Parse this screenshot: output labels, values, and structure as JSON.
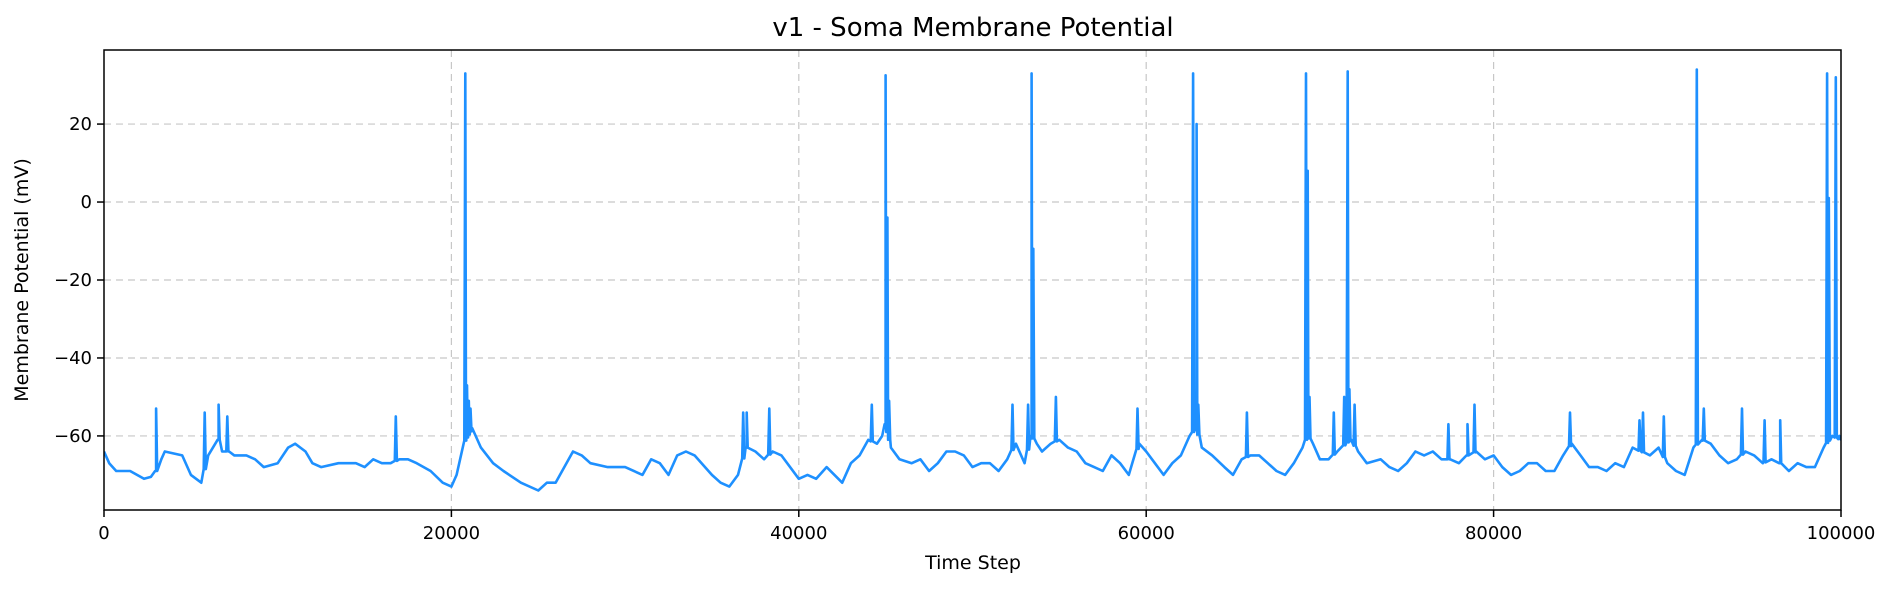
{
  "chart_data": {
    "type": "line",
    "title": "v1 - Soma Membrane Potential",
    "xlabel": "Time Step",
    "ylabel": "Membrane Potential (mV)",
    "xlim": [
      0,
      100000
    ],
    "ylim": [
      -79,
      39
    ],
    "xticks": [
      0,
      20000,
      40000,
      60000,
      80000,
      100000
    ],
    "yticks": [
      -60,
      -40,
      -20,
      0,
      20
    ],
    "grid": true,
    "legend": "none",
    "series": [
      {
        "color": "#1e90ff",
        "baseline": [
          [
            0,
            -64
          ],
          [
            300,
            -67
          ],
          [
            700,
            -69
          ],
          [
            1500,
            -69
          ],
          [
            2300,
            -71
          ],
          [
            2700,
            -70.5
          ],
          [
            3000,
            -69
          ],
          [
            3300,
            -66
          ],
          [
            3500,
            -64
          ],
          [
            4500,
            -65
          ],
          [
            5000,
            -70
          ],
          [
            5600,
            -72
          ],
          [
            6000,
            -65
          ],
          [
            6600,
            -61
          ],
          [
            6800,
            -64
          ],
          [
            7200,
            -64
          ],
          [
            7500,
            -65
          ],
          [
            8200,
            -65
          ],
          [
            8700,
            -66
          ],
          [
            9200,
            -68
          ],
          [
            10000,
            -67
          ],
          [
            10600,
            -63
          ],
          [
            11000,
            -62
          ],
          [
            11600,
            -64
          ],
          [
            12000,
            -67
          ],
          [
            12500,
            -68
          ],
          [
            13500,
            -67
          ],
          [
            14500,
            -67
          ],
          [
            15000,
            -68
          ],
          [
            15500,
            -66
          ],
          [
            16000,
            -67
          ],
          [
            16500,
            -67
          ],
          [
            17000,
            -66
          ],
          [
            17500,
            -66
          ],
          [
            18000,
            -67
          ],
          [
            18800,
            -69
          ],
          [
            19500,
            -72
          ],
          [
            20000,
            -73
          ],
          [
            20300,
            -70
          ],
          [
            20700,
            -62
          ],
          [
            21200,
            -58
          ],
          [
            21700,
            -63
          ],
          [
            22400,
            -67
          ],
          [
            23000,
            -69
          ],
          [
            24000,
            -72
          ],
          [
            25000,
            -74
          ],
          [
            25500,
            -72
          ],
          [
            26000,
            -72
          ],
          [
            26500,
            -68
          ],
          [
            27000,
            -64
          ],
          [
            27500,
            -65
          ],
          [
            28000,
            -67
          ],
          [
            29000,
            -68
          ],
          [
            30000,
            -68
          ],
          [
            31000,
            -70
          ],
          [
            31500,
            -66
          ],
          [
            32000,
            -67
          ],
          [
            32500,
            -70
          ],
          [
            33000,
            -65
          ],
          [
            33500,
            -64
          ],
          [
            34000,
            -65
          ],
          [
            35000,
            -70
          ],
          [
            35500,
            -72
          ],
          [
            36000,
            -73
          ],
          [
            36500,
            -70
          ],
          [
            37000,
            -63
          ],
          [
            37500,
            -64
          ],
          [
            38000,
            -66
          ],
          [
            38500,
            -64
          ],
          [
            39000,
            -65
          ],
          [
            40000,
            -71
          ],
          [
            40500,
            -70
          ],
          [
            41000,
            -71
          ],
          [
            41600,
            -68
          ],
          [
            42500,
            -72
          ],
          [
            43000,
            -67
          ],
          [
            43500,
            -65
          ],
          [
            44000,
            -61
          ],
          [
            44500,
            -62
          ],
          [
            44800,
            -60
          ],
          [
            45000,
            -57
          ],
          [
            45300,
            -63
          ],
          [
            45800,
            -66
          ],
          [
            46500,
            -67
          ],
          [
            47000,
            -66
          ],
          [
            47500,
            -69
          ],
          [
            48000,
            -67
          ],
          [
            48500,
            -64
          ],
          [
            49000,
            -64
          ],
          [
            49500,
            -65
          ],
          [
            50000,
            -68
          ],
          [
            50500,
            -67
          ],
          [
            51000,
            -67
          ],
          [
            51500,
            -69
          ],
          [
            52000,
            -66
          ],
          [
            52500,
            -62
          ],
          [
            53000,
            -67
          ],
          [
            53400,
            -60
          ],
          [
            53700,
            -62
          ],
          [
            54000,
            -64
          ],
          [
            54500,
            -62
          ],
          [
            55000,
            -61
          ],
          [
            55500,
            -63
          ],
          [
            56000,
            -64
          ],
          [
            56500,
            -67
          ],
          [
            57000,
            -68
          ],
          [
            57500,
            -69
          ],
          [
            58000,
            -65
          ],
          [
            58500,
            -67
          ],
          [
            59000,
            -70
          ],
          [
            59600,
            -62
          ],
          [
            60000,
            -64
          ],
          [
            60500,
            -67
          ],
          [
            61000,
            -70
          ],
          [
            61500,
            -67
          ],
          [
            62000,
            -65
          ],
          [
            62500,
            -60
          ],
          [
            62900,
            -58
          ],
          [
            63200,
            -63
          ],
          [
            63800,
            -65
          ],
          [
            64500,
            -68
          ],
          [
            65000,
            -70
          ],
          [
            65500,
            -66
          ],
          [
            66000,
            -65
          ],
          [
            66500,
            -65
          ],
          [
            67000,
            -67
          ],
          [
            67500,
            -69
          ],
          [
            68000,
            -70
          ],
          [
            68500,
            -67
          ],
          [
            69000,
            -63
          ],
          [
            69300,
            -60
          ],
          [
            69600,
            -62
          ],
          [
            70000,
            -66
          ],
          [
            70500,
            -66
          ],
          [
            71000,
            -64
          ],
          [
            71500,
            -62
          ],
          [
            71800,
            -61
          ],
          [
            72200,
            -64
          ],
          [
            72700,
            -67
          ],
          [
            73500,
            -66
          ],
          [
            74000,
            -68
          ],
          [
            74500,
            -69
          ],
          [
            75000,
            -67
          ],
          [
            75500,
            -64
          ],
          [
            76000,
            -65
          ],
          [
            76500,
            -64
          ],
          [
            77000,
            -66
          ],
          [
            77500,
            -66
          ],
          [
            78000,
            -67
          ],
          [
            78500,
            -65
          ],
          [
            79000,
            -64
          ],
          [
            79500,
            -66
          ],
          [
            80000,
            -65
          ],
          [
            80500,
            -68
          ],
          [
            81000,
            -70
          ],
          [
            81500,
            -69
          ],
          [
            82000,
            -67
          ],
          [
            82500,
            -67
          ],
          [
            83000,
            -69
          ],
          [
            83500,
            -69
          ],
          [
            84000,
            -65
          ],
          [
            84500,
            -62
          ],
          [
            85000,
            -65
          ],
          [
            85500,
            -68
          ],
          [
            86000,
            -68
          ],
          [
            86500,
            -69
          ],
          [
            87000,
            -67
          ],
          [
            87500,
            -68
          ],
          [
            88000,
            -63
          ],
          [
            88500,
            -64
          ],
          [
            89000,
            -65
          ],
          [
            89500,
            -63
          ],
          [
            90000,
            -67
          ],
          [
            90500,
            -69
          ],
          [
            91000,
            -70
          ],
          [
            91500,
            -63
          ],
          [
            92000,
            -61
          ],
          [
            92500,
            -62
          ],
          [
            93000,
            -65
          ],
          [
            93500,
            -67
          ],
          [
            94000,
            -66
          ],
          [
            94500,
            -64
          ],
          [
            95000,
            -65
          ],
          [
            95500,
            -67
          ],
          [
            96000,
            -66
          ],
          [
            96500,
            -67
          ],
          [
            97000,
            -69
          ],
          [
            97500,
            -67
          ],
          [
            98000,
            -68
          ],
          [
            98500,
            -68
          ],
          [
            99000,
            -63
          ],
          [
            99500,
            -60
          ],
          [
            100000,
            -61
          ]
        ],
        "spikes": [
          [
            3000,
            -53
          ],
          [
            5800,
            -54
          ],
          [
            6600,
            -52
          ],
          [
            7100,
            -55
          ],
          [
            16800,
            -55
          ],
          [
            20800,
            33
          ],
          [
            20900,
            -47
          ],
          [
            21000,
            -51
          ],
          [
            21100,
            -53
          ],
          [
            36800,
            -54
          ],
          [
            37000,
            -54
          ],
          [
            38300,
            -53
          ],
          [
            44200,
            -52
          ],
          [
            45000,
            32.5
          ],
          [
            45100,
            -4
          ],
          [
            45200,
            -51
          ],
          [
            52300,
            -52
          ],
          [
            53200,
            -52
          ],
          [
            53400,
            33
          ],
          [
            53500,
            -12
          ],
          [
            54800,
            -50
          ],
          [
            59500,
            -53
          ],
          [
            62700,
            33
          ],
          [
            62900,
            20
          ],
          [
            63000,
            -52
          ],
          [
            65800,
            -54
          ],
          [
            69200,
            33
          ],
          [
            69300,
            8
          ],
          [
            69400,
            -50
          ],
          [
            70800,
            -54
          ],
          [
            71400,
            -50
          ],
          [
            71600,
            33.5
          ],
          [
            71700,
            -48
          ],
          [
            72000,
            -52
          ],
          [
            77400,
            -57
          ],
          [
            78500,
            -57
          ],
          [
            78900,
            -52
          ],
          [
            84400,
            -54
          ],
          [
            88400,
            -56
          ],
          [
            88600,
            -54
          ],
          [
            89800,
            -55
          ],
          [
            91700,
            34
          ],
          [
            92100,
            -53
          ],
          [
            94300,
            -53
          ],
          [
            95600,
            -56
          ],
          [
            96500,
            -56
          ],
          [
            99200,
            33
          ],
          [
            99300,
            1
          ],
          [
            99700,
            32
          ],
          [
            99900,
            -60
          ]
        ]
      }
    ]
  }
}
